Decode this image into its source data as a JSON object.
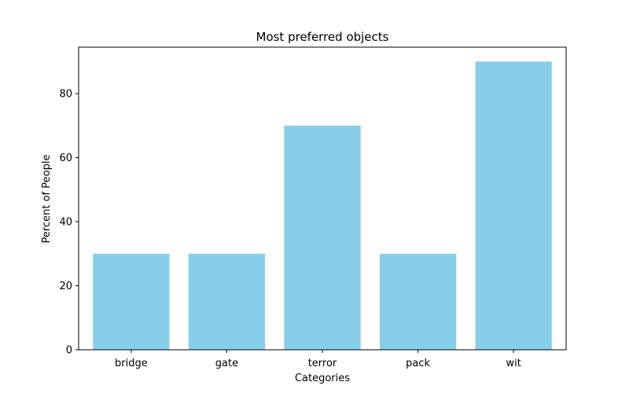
{
  "chart_data": {
    "type": "bar",
    "title": "Most preferred objects",
    "xlabel": "Categories",
    "ylabel": "Percent of People",
    "categories": [
      "bridge",
      "gate",
      "terror",
      "pack",
      "wit"
    ],
    "values": [
      30,
      30,
      70,
      30,
      90
    ],
    "ylim": [
      0,
      94.5
    ],
    "yticks": [
      0,
      20,
      40,
      60,
      80
    ],
    "grid": false,
    "legend": "none",
    "colors": {
      "bar": "#87CEEB",
      "axis": "#000000",
      "background": "#ffffff"
    }
  }
}
